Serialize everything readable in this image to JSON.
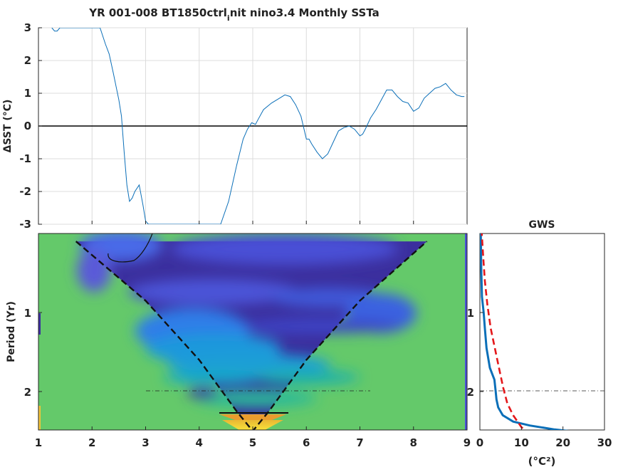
{
  "colors": {
    "series": "#0b6fb8",
    "gws": "#0b6fb8",
    "significance": "#e4171a",
    "coi_fill": "#64c96a",
    "zero_line": "#000000",
    "grid": "#dcdcdc",
    "power_low": "#3b2f9e",
    "power_mid": "#1f9fd3",
    "power_high": "#f5d23a"
  },
  "chart_data": [
    {
      "type": "line",
      "title_main": "YR 001-008 BT1850ctrl",
      "title_sub": "i",
      "title_rest": "nit nino3.4 Monthly SSTa",
      "ylabel": "ΔSST (°C)",
      "xlim": [
        1,
        9
      ],
      "ylim": [
        -3,
        3
      ],
      "xticks": [
        2,
        3,
        4,
        5,
        6,
        7,
        8
      ],
      "yticks": [
        -3,
        -2,
        -1,
        0,
        1,
        2,
        3
      ],
      "grid": true,
      "series": [
        {
          "x": [
            1.25,
            1.3,
            1.35,
            1.4,
            2.15,
            2.25,
            2.32,
            2.4,
            2.45,
            2.5,
            2.55,
            2.6,
            2.65,
            2.7,
            2.75,
            2.8,
            2.88,
            2.95,
            3.0,
            3.05,
            4.4,
            4.55,
            4.7,
            4.82,
            4.9,
            4.98,
            5.05,
            5.1,
            5.2,
            5.35,
            5.5,
            5.6,
            5.7,
            5.8,
            5.9,
            6.0,
            6.05,
            6.1,
            6.2,
            6.3,
            6.4,
            6.5,
            6.6,
            6.7,
            6.8,
            6.9,
            7.0,
            7.05,
            7.1,
            7.2,
            7.3,
            7.4,
            7.5,
            7.6,
            7.7,
            7.8,
            7.9,
            8.0,
            8.1,
            8.2,
            8.3,
            8.4,
            8.5,
            8.6,
            8.7,
            8.8,
            8.9,
            8.95
          ],
          "y": [
            3.0,
            2.9,
            2.9,
            3.0,
            3.0,
            2.5,
            2.2,
            1.6,
            1.2,
            0.8,
            0.3,
            -0.8,
            -1.8,
            -2.3,
            -2.2,
            -2.0,
            -1.8,
            -2.4,
            -2.9,
            -3.0,
            -3.0,
            -2.3,
            -1.2,
            -0.4,
            -0.1,
            0.1,
            0.05,
            0.2,
            0.5,
            0.7,
            0.85,
            0.95,
            0.9,
            0.65,
            0.3,
            -0.4,
            -0.4,
            -0.55,
            -0.8,
            -1.0,
            -0.85,
            -0.5,
            -0.15,
            -0.05,
            0.0,
            -0.1,
            -0.3,
            -0.25,
            -0.1,
            0.25,
            0.5,
            0.8,
            1.1,
            1.1,
            0.9,
            0.75,
            0.7,
            0.45,
            0.55,
            0.85,
            1.0,
            1.15,
            1.2,
            1.3,
            1.1,
            0.95,
            0.9,
            0.9
          ]
        }
      ]
    },
    {
      "type": "heatmap",
      "ylabel": "Period (Yr)",
      "xlim": [
        1,
        9
      ],
      "xticks": [
        1,
        2,
        3,
        4,
        5,
        6,
        7,
        8,
        9
      ],
      "ytick_labels": [
        "1",
        "2"
      ],
      "cone_of_influence": {
        "x": [
          1.7,
          3.0,
          4.0,
          4.7,
          5.0,
          5.3,
          6.0,
          7.0,
          8.25
        ],
        "period": [
          0.1,
          0.85,
          1.6,
          2.25,
          2.5,
          2.25,
          1.6,
          0.85,
          0.1
        ]
      }
    },
    {
      "type": "line",
      "title": "GWS",
      "xlabel": "(°C²)",
      "xlim": [
        0,
        30
      ],
      "xticks": [
        0,
        10,
        20,
        30
      ],
      "ytick_labels": [
        "1",
        "2"
      ],
      "series": [
        {
          "name": "global wavelet spectrum",
          "x": [
            0.2,
            0.3,
            0.5,
            0.9,
            1.2,
            1.6,
            2.4,
            3.5,
            3.8,
            4.0,
            4.4,
            5.5,
            8.0,
            12.0,
            18.0,
            25.0,
            30.0
          ],
          "period": [
            -0.05,
            0.4,
            0.8,
            1.0,
            1.2,
            1.45,
            1.7,
            1.85,
            2.0,
            2.1,
            2.2,
            2.3,
            2.38,
            2.43,
            2.48,
            2.52,
            2.55
          ]
        },
        {
          "name": "significance",
          "x": [
            0.4,
            0.8,
            1.2,
            1.8,
            2.6,
            3.6,
            4.6,
            5.6,
            6.6,
            8.0,
            10.0,
            12.5,
            14.5
          ],
          "period": [
            -0.05,
            0.3,
            0.6,
            0.9,
            1.2,
            1.45,
            1.7,
            1.95,
            2.15,
            2.3,
            2.45,
            2.57,
            2.68
          ]
        }
      ]
    }
  ]
}
